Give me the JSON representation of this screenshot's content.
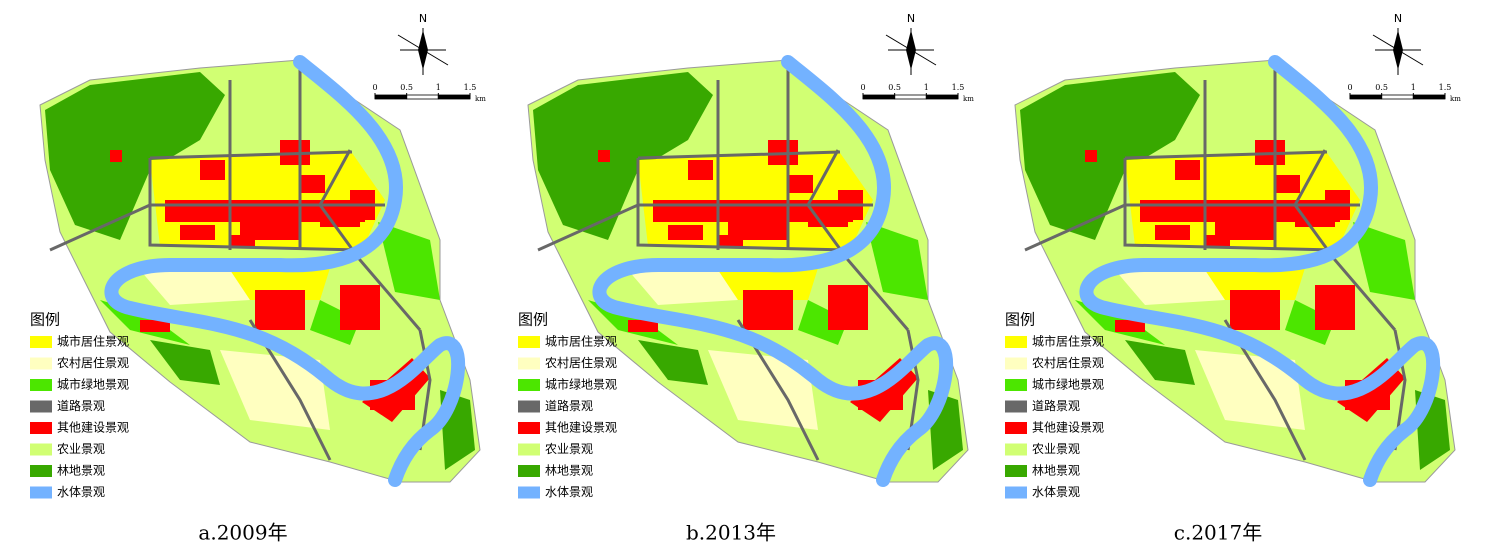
{
  "panels": [
    {
      "caption": "a.2009年"
    },
    {
      "caption": "b.2013年"
    },
    {
      "caption": "c.2017年"
    }
  ],
  "north": "N",
  "scale_bar": {
    "ticks": [
      0,
      0.5,
      1,
      1.5
    ],
    "unit": "km"
  },
  "legend": {
    "title": "图例",
    "items": [
      {
        "label": "城市居住景观",
        "color": "#ffff00"
      },
      {
        "label": "农村居住景观",
        "color": "#ffffc0"
      },
      {
        "label": "城市绿地景观",
        "color": "#4ce600"
      },
      {
        "label": "道路景观",
        "color": "#686868"
      },
      {
        "label": "其他建设景观",
        "color": "#ff0000"
      },
      {
        "label": "农业景观",
        "color": "#d1ff73"
      },
      {
        "label": "林地景观",
        "color": "#38a800"
      },
      {
        "label": "水体景观",
        "color": "#73b2ff"
      }
    ]
  }
}
